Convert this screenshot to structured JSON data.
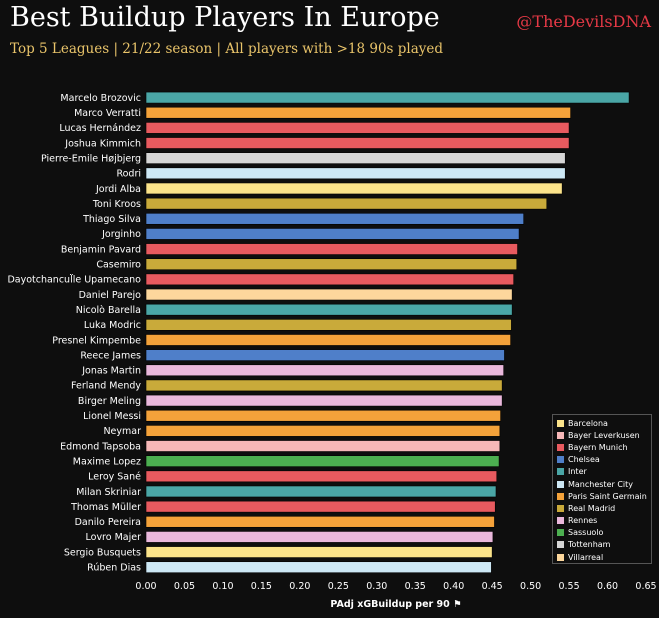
{
  "header": {
    "title": "Best Buildup Players In Europe",
    "subtitle": "Top 5 Leagues | 21/22 season | All players with >18 90s played",
    "handle": "@TheDevilsDNA"
  },
  "teams": [
    {
      "name": "Barcelona",
      "color": "#fbe38a"
    },
    {
      "name": "Bayer Leverkusen",
      "color": "#f6b8b8"
    },
    {
      "name": "Bayern Munich",
      "color": "#e85a5f"
    },
    {
      "name": "Chelsea",
      "color": "#4f7fc9"
    },
    {
      "name": "Inter",
      "color": "#4aa6a6"
    },
    {
      "name": "Manchester City",
      "color": "#cde8f5"
    },
    {
      "name": "Paris Saint Germain",
      "color": "#f4a23a"
    },
    {
      "name": "Real Madrid",
      "color": "#c9aa3a"
    },
    {
      "name": "Rennes",
      "color": "#eab8dc"
    },
    {
      "name": "Sassuolo",
      "color": "#4caf50"
    },
    {
      "name": "Tottenham",
      "color": "#d6d6d6"
    },
    {
      "name": "Villarreal",
      "color": "#fdd79c"
    }
  ],
  "chart_data": {
    "type": "bar",
    "orientation": "horizontal",
    "xlabel": "PAdj xGBuildup per 90 ⚑",
    "xlim": [
      0,
      0.65
    ],
    "xticks": [
      "0.00",
      "0.05",
      "0.10",
      "0.15",
      "0.20",
      "0.25",
      "0.30",
      "0.35",
      "0.40",
      "0.45",
      "0.50",
      "0.55",
      "0.60",
      "0.65"
    ],
    "legend_position": "bottom-right",
    "grid": false,
    "bars": [
      {
        "player": "Marcelo Brozovic",
        "value": 0.628,
        "team": "Inter"
      },
      {
        "player": "Marco Verratti",
        "value": 0.552,
        "team": "Paris Saint Germain"
      },
      {
        "player": "Lucas Hernández",
        "value": 0.55,
        "team": "Bayern Munich"
      },
      {
        "player": "Joshua Kimmich",
        "value": 0.55,
        "team": "Bayern Munich"
      },
      {
        "player": "Pierre-Emile Højbjerg",
        "value": 0.545,
        "team": "Tottenham"
      },
      {
        "player": "Rodri",
        "value": 0.545,
        "team": "Manchester City"
      },
      {
        "player": "Jordi Alba",
        "value": 0.541,
        "team": "Barcelona"
      },
      {
        "player": "Toni Kroos",
        "value": 0.521,
        "team": "Real Madrid"
      },
      {
        "player": "Thiago Silva",
        "value": 0.491,
        "team": "Chelsea"
      },
      {
        "player": "Jorginho",
        "value": 0.485,
        "team": "Chelsea"
      },
      {
        "player": "Benjamin Pavard",
        "value": 0.483,
        "team": "Bayern Munich"
      },
      {
        "player": "Casemiro",
        "value": 0.482,
        "team": "Real Madrid"
      },
      {
        "player": "Dayotchancul̈le Upamecano",
        "value": 0.478,
        "team": "Bayern Munich"
      },
      {
        "player": "Daniel Parejo",
        "value": 0.476,
        "team": "Villarreal"
      },
      {
        "player": "Nicolò Barella",
        "value": 0.476,
        "team": "Inter"
      },
      {
        "player": "Luka Modric",
        "value": 0.475,
        "team": "Real Madrid"
      },
      {
        "player": "Presnel Kimpembe",
        "value": 0.474,
        "team": "Paris Saint Germain"
      },
      {
        "player": "Reece James",
        "value": 0.466,
        "team": "Chelsea"
      },
      {
        "player": "Jonas Martin",
        "value": 0.465,
        "team": "Rennes"
      },
      {
        "player": "Ferland Mendy",
        "value": 0.463,
        "team": "Real Madrid"
      },
      {
        "player": "Birger Meling",
        "value": 0.463,
        "team": "Rennes"
      },
      {
        "player": "Lionel Messi",
        "value": 0.461,
        "team": "Paris Saint Germain"
      },
      {
        "player": "Neymar",
        "value": 0.46,
        "team": "Paris Saint Germain"
      },
      {
        "player": "Edmond Tapsoba",
        "value": 0.46,
        "team": "Bayer Leverkusen"
      },
      {
        "player": "Maxime Lopez",
        "value": 0.459,
        "team": "Sassuolo"
      },
      {
        "player": "Leroy Sané",
        "value": 0.456,
        "team": "Bayern Munich"
      },
      {
        "player": "Milan Skriniar",
        "value": 0.455,
        "team": "Inter"
      },
      {
        "player": "Thomas Müller",
        "value": 0.454,
        "team": "Bayern Munich"
      },
      {
        "player": "Danilo Pereira",
        "value": 0.453,
        "team": "Paris Saint Germain"
      },
      {
        "player": "Lovro Majer",
        "value": 0.451,
        "team": "Rennes"
      },
      {
        "player": "Sergio Busquets",
        "value": 0.45,
        "team": "Barcelona"
      },
      {
        "player": "Rúben Dias",
        "value": 0.449,
        "team": "Manchester City"
      }
    ]
  }
}
